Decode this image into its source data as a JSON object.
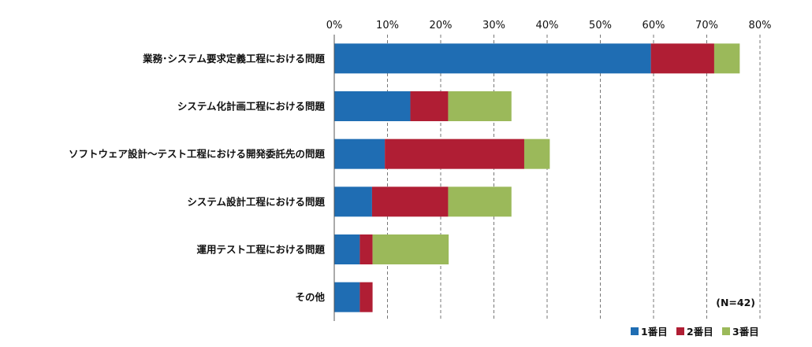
{
  "chart_data": {
    "type": "bar",
    "orientation": "horizontal",
    "stacked": true,
    "categories": [
      "業務･システム要求定義工程における問題",
      "システム化計画工程における問題",
      "ソフトウェア設計～テスト工程における開発委託先の問題",
      "システム設計工程における問題",
      "運用テスト工程における問題",
      "その他"
    ],
    "series": [
      {
        "name": "1番目",
        "color": "#1f6db3",
        "values": [
          59.5,
          14.3,
          9.5,
          7.1,
          4.8,
          4.8
        ]
      },
      {
        "name": "2番目",
        "color": "#b01e34",
        "values": [
          11.9,
          7.1,
          26.2,
          14.3,
          2.4,
          2.4
        ]
      },
      {
        "name": "3番目",
        "color": "#9bb95a",
        "values": [
          4.8,
          11.9,
          4.8,
          11.9,
          14.3,
          0
        ]
      }
    ],
    "xlim": [
      0,
      80
    ],
    "xticks": [
      "0%",
      "10%",
      "20%",
      "30%",
      "40%",
      "50%",
      "60%",
      "70%",
      "80%"
    ],
    "grid": "vertical dashed",
    "legend_position": "bottom-right",
    "annotation": "(N=42)"
  }
}
